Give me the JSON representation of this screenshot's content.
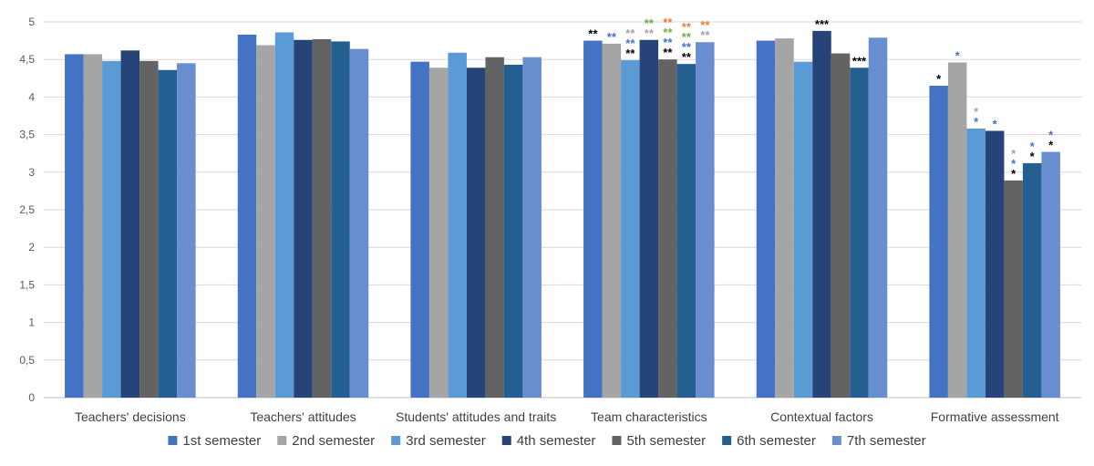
{
  "chart_data": {
    "type": "bar",
    "title": "",
    "xlabel": "",
    "ylabel": "",
    "ylim": [
      0,
      5
    ],
    "yticks": [
      "0",
      "0,5",
      "1",
      "1,5",
      "2",
      "2,5",
      "3",
      "3,5",
      "4",
      "4,5",
      "5"
    ],
    "grid": true,
    "legend_position": "bottom",
    "categories": [
      "Teachers' decisions",
      "Teachers' attitudes",
      "Students' attitudes and traits",
      "Team characteristics",
      "Contextual factors",
      "Formative assessment"
    ],
    "series": [
      {
        "name": "1st semester",
        "color": "#4472C4",
        "values": [
          4.57,
          4.83,
          4.47,
          4.75,
          4.75,
          4.15
        ]
      },
      {
        "name": "2nd semester",
        "color": "#A5A5A5",
        "values": [
          4.57,
          4.69,
          4.39,
          4.71,
          4.78,
          4.46
        ]
      },
      {
        "name": "3rd semester",
        "color": "#5B9BD5",
        "values": [
          4.48,
          4.86,
          4.59,
          4.49,
          4.47,
          3.58
        ]
      },
      {
        "name": "4th semester",
        "color": "#264478",
        "values": [
          4.62,
          4.76,
          4.39,
          4.76,
          4.88,
          3.55
        ]
      },
      {
        "name": "5th semester",
        "color": "#636363",
        "values": [
          4.48,
          4.77,
          4.53,
          4.5,
          4.58,
          2.89
        ]
      },
      {
        "name": "6th semester",
        "color": "#255E91",
        "values": [
          4.36,
          4.74,
          4.43,
          4.44,
          4.39,
          3.12
        ]
      },
      {
        "name": "7th semester",
        "color": "#698ED0",
        "values": [
          4.45,
          4.64,
          4.53,
          4.73,
          4.79,
          3.27
        ]
      }
    ],
    "annotations": [
      {
        "category": 3,
        "series": 0,
        "markers": [
          {
            "text": "**",
            "color": "#000000"
          }
        ]
      },
      {
        "category": 3,
        "series": 1,
        "markers": [
          {
            "text": "**",
            "color": "#4472C4"
          }
        ]
      },
      {
        "category": 3,
        "series": 2,
        "markers": [
          {
            "text": "**",
            "color": "#000000"
          },
          {
            "text": "**",
            "color": "#4472C4"
          },
          {
            "text": "**",
            "color": "#A5A5A5"
          }
        ]
      },
      {
        "category": 3,
        "series": 3,
        "markers": [
          {
            "text": "**",
            "color": "#A5A5A5"
          },
          {
            "text": "**",
            "color": "#70AD47"
          }
        ]
      },
      {
        "category": 3,
        "series": 4,
        "markers": [
          {
            "text": "**",
            "color": "#000000"
          },
          {
            "text": "**",
            "color": "#4472C4"
          },
          {
            "text": "**",
            "color": "#70AD47"
          },
          {
            "text": "**",
            "color": "#ED7D31"
          }
        ]
      },
      {
        "category": 3,
        "series": 5,
        "markers": [
          {
            "text": "**",
            "color": "#000000"
          },
          {
            "text": "**",
            "color": "#4472C4"
          },
          {
            "text": "**",
            "color": "#70AD47"
          },
          {
            "text": "**",
            "color": "#ED7D31"
          }
        ]
      },
      {
        "category": 3,
        "series": 6,
        "markers": [
          {
            "text": "**",
            "color": "#A5A5A5"
          },
          {
            "text": "**",
            "color": "#ED7D31"
          }
        ]
      },
      {
        "category": 4,
        "series": 3,
        "markers": [
          {
            "text": "***",
            "color": "#000000"
          }
        ]
      },
      {
        "category": 4,
        "series": 5,
        "markers": [
          {
            "text": "***",
            "color": "#000000"
          }
        ]
      },
      {
        "category": 5,
        "series": 0,
        "markers": [
          {
            "text": "*",
            "color": "#000000"
          }
        ]
      },
      {
        "category": 5,
        "series": 1,
        "markers": [
          {
            "text": "*",
            "color": "#4472C4"
          }
        ]
      },
      {
        "category": 5,
        "series": 2,
        "markers": [
          {
            "text": "*",
            "color": "#4472C4"
          },
          {
            "text": "*",
            "color": "#A5A5A5"
          }
        ]
      },
      {
        "category": 5,
        "series": 3,
        "markers": [
          {
            "text": "*",
            "color": "#4472C4"
          }
        ]
      },
      {
        "category": 5,
        "series": 4,
        "markers": [
          {
            "text": "*",
            "color": "#000000"
          },
          {
            "text": "*",
            "color": "#4472C4"
          },
          {
            "text": "*",
            "color": "#A5A5A5"
          }
        ]
      },
      {
        "category": 5,
        "series": 5,
        "markers": [
          {
            "text": "*",
            "color": "#000000"
          },
          {
            "text": "*",
            "color": "#4472C4"
          }
        ]
      },
      {
        "category": 5,
        "series": 6,
        "markers": [
          {
            "text": "*",
            "color": "#000000"
          },
          {
            "text": "*",
            "color": "#4472C4"
          }
        ]
      }
    ]
  }
}
